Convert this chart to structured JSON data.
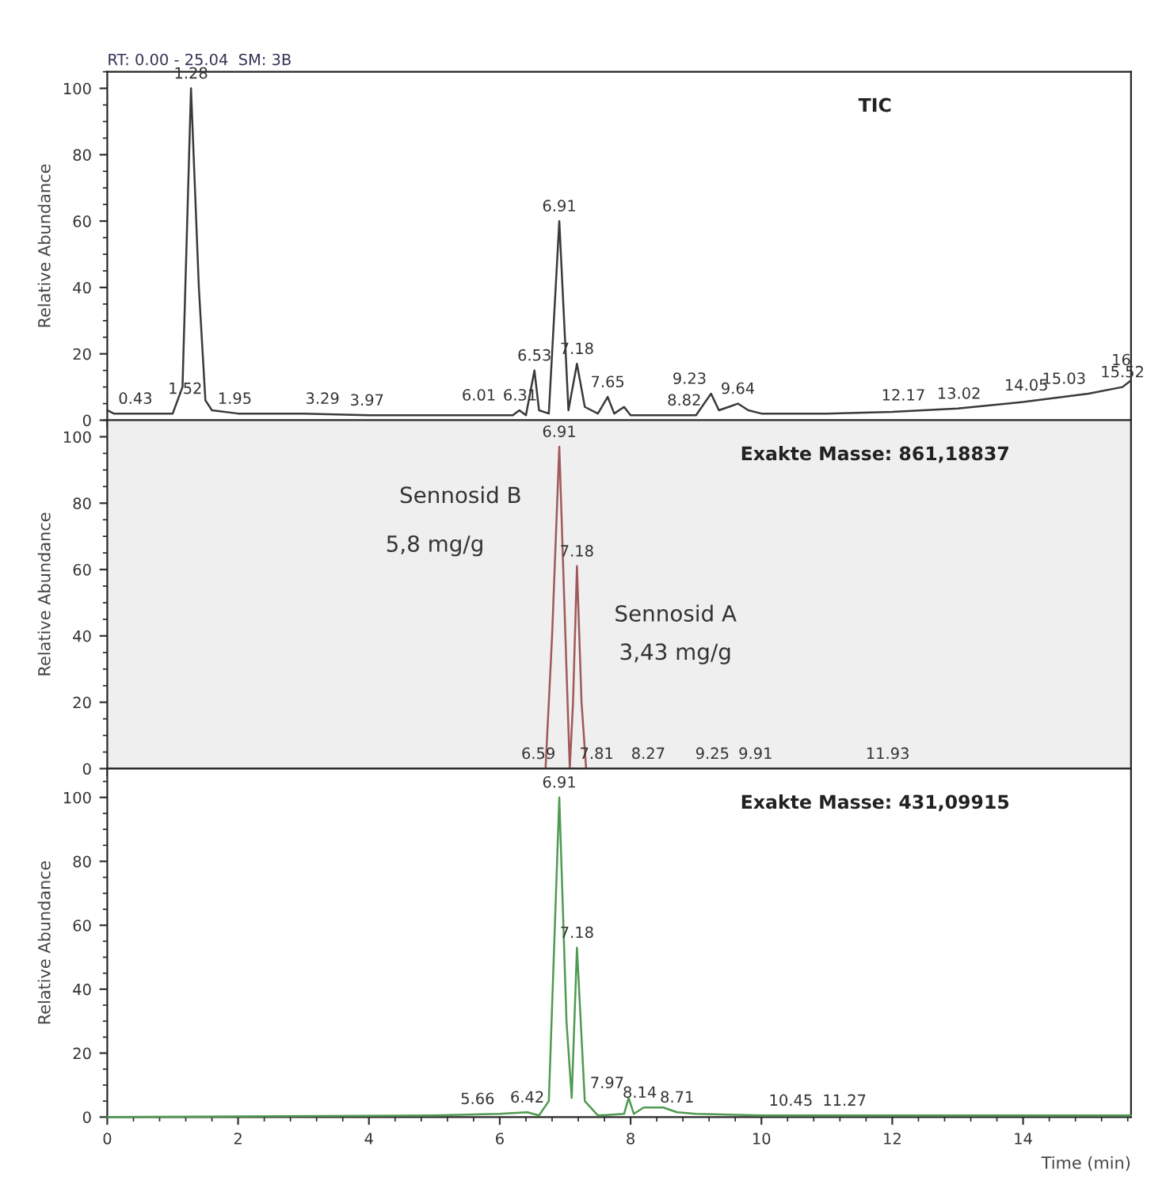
{
  "chart_data": [
    {
      "type": "line",
      "title": "TIC",
      "ylabel": "Relative Abundance",
      "x": [
        0,
        0.1,
        0.43,
        1.0,
        1.15,
        1.28,
        1.4,
        1.5,
        1.6,
        2,
        3,
        4,
        5,
        6,
        6.2,
        6.3,
        6.4,
        6.53,
        6.6,
        6.75,
        6.91,
        7.05,
        7.18,
        7.3,
        7.5,
        7.65,
        7.75,
        7.9,
        8.0,
        8.5,
        9.0,
        9.23,
        9.35,
        9.5,
        9.64,
        9.8,
        10,
        11,
        12,
        13,
        14,
        15,
        15.52,
        15.65
      ],
      "series": [
        {
          "color": "#3a3a3a",
          "values": [
            3,
            2,
            2,
            2,
            10,
            100,
            40,
            6,
            3,
            2,
            2,
            1.5,
            1.5,
            1.5,
            1.5,
            3,
            1.5,
            15,
            3,
            2,
            60,
            3,
            17,
            4,
            2,
            7,
            2,
            4,
            1.5,
            1.5,
            1.5,
            8,
            3,
            4,
            5,
            3,
            2,
            2,
            2.5,
            3.5,
            5.5,
            8,
            10,
            12
          ]
        }
      ],
      "xlim": [
        0,
        15.65
      ],
      "xticks": [
        0,
        2,
        4,
        6,
        8,
        10,
        12,
        14
      ],
      "ylim": [
        0,
        105
      ],
      "yticks": [
        0,
        20,
        40,
        60,
        80,
        100
      ],
      "tick_labels": "y",
      "subtitle": "RT: 0.00 - 25.04  SM: 3B",
      "annotations": [
        "16",
        {
          "text": "0.43",
          "x": 0.43,
          "y": 2
        },
        {
          "text": "1.28",
          "x": 1.28,
          "y": 100
        },
        {
          "text": "1.52",
          "x": 1.52,
          "y": 5
        },
        {
          "text": "1.95",
          "x": 1.95,
          "y": 2
        },
        {
          "text": "3.29",
          "x": 3.29,
          "y": 2
        },
        {
          "text": "3.97",
          "x": 3.97,
          "y": 1.5
        },
        {
          "text": "6.01",
          "x": 6.01,
          "y": 3
        },
        {
          "text": "6.31",
          "x": 6.31,
          "y": 3
        },
        {
          "text": "6.53",
          "x": 6.53,
          "y": 15
        },
        {
          "text": "6.91",
          "x": 6.91,
          "y": 60
        },
        {
          "text": "7.18",
          "x": 7.18,
          "y": 17
        },
        {
          "text": "7.65",
          "x": 7.65,
          "y": 7
        },
        {
          "text": "8.82",
          "x": 8.82,
          "y": 1.5
        },
        {
          "text": "9.23",
          "x": 9.23,
          "y": 8
        },
        {
          "text": "9.64",
          "x": 9.64,
          "y": 5
        },
        {
          "text": "12.17",
          "x": 12.17,
          "y": 3
        },
        {
          "text": "13.02",
          "x": 13.02,
          "y": 3.5
        },
        {
          "text": "14.05",
          "x": 14.05,
          "y": 6
        },
        {
          "text": "15.03",
          "x": 15.03,
          "y": 8
        },
        {
          "text": "15.52",
          "x": 15.52,
          "y": 10
        }
      ]
    },
    {
      "type": "line",
      "title": "Exakte Masse: 861,18837",
      "ylabel": "Relative Abundance",
      "x": [
        6.7,
        6.8,
        6.91,
        7.02,
        7.07,
        7.12,
        7.18,
        7.25,
        7.32,
        15.65
      ],
      "series": [
        {
          "color": "#a0585a",
          "values": [
            0,
            40,
            97,
            30,
            0,
            20,
            61,
            20,
            0,
            0
          ]
        }
      ],
      "xlim": [
        0,
        15.65
      ],
      "xticks": [
        0,
        2,
        4,
        6,
        8,
        10,
        12,
        14
      ],
      "ylim": [
        0,
        105
      ],
      "yticks": [
        0,
        20,
        40,
        60,
        80,
        100
      ],
      "tick_labels": "y",
      "bands": [
        {
          "axis": "x",
          "from": 0,
          "to": 15.65,
          "color": "#efefef"
        }
      ],
      "annotations": [
        {
          "text": "6.91",
          "x": 6.91,
          "y": 97
        },
        {
          "text": "7.18",
          "x": 7.18,
          "y": 61
        },
        {
          "text": "6.59",
          "x": 6.59,
          "y": 0
        },
        {
          "text": "7.81",
          "x": 7.81,
          "y": 0
        },
        {
          "text": "8.27",
          "x": 8.27,
          "y": 0
        },
        {
          "text": "9.25",
          "x": 9.25,
          "y": 0
        },
        {
          "text": "9.91",
          "x": 9.91,
          "y": 0
        },
        {
          "text": "11.93",
          "x": 11.93,
          "y": 0
        },
        "Sennosid B",
        "5,8 mg/g",
        "Sennosid A",
        "3,43 mg/g"
      ]
    },
    {
      "type": "line",
      "title": "Exakte Masse: 431,09915",
      "ylabel": "Relative Abundance",
      "xlabel": "Time (min)",
      "x": [
        0,
        5,
        6,
        6.42,
        6.6,
        6.75,
        6.91,
        7.02,
        7.1,
        7.18,
        7.3,
        7.5,
        7.9,
        7.97,
        8.05,
        8.2,
        8.5,
        8.71,
        9,
        10,
        15.65
      ],
      "series": [
        {
          "color": "#4f9a52",
          "values": [
            0,
            0.5,
            1,
            1.5,
            0.5,
            5,
            100,
            30,
            6,
            53,
            5,
            0.5,
            1,
            6,
            1,
            3,
            3,
            1.5,
            1,
            0.5,
            0.5
          ]
        }
      ],
      "xlim": [
        0,
        15.65
      ],
      "xticks": [
        0,
        2,
        4,
        6,
        8,
        10,
        12,
        14
      ],
      "ylim": [
        0,
        109
      ],
      "yticks": [
        0,
        20,
        40,
        60,
        80,
        100
      ],
      "annotations": [
        {
          "text": "6.91",
          "x": 6.91,
          "y": 100
        },
        {
          "text": "7.18",
          "x": 7.18,
          "y": 53
        },
        {
          "text": "5.66",
          "x": 5.66,
          "y": 1
        },
        {
          "text": "6.42",
          "x": 6.42,
          "y": 1.5
        },
        {
          "text": "7.97",
          "x": 7.97,
          "y": 6
        },
        {
          "text": "8.14",
          "x": 8.14,
          "y": 3
        },
        {
          "text": "8.71",
          "x": 8.71,
          "y": 1.5
        },
        {
          "text": "10.45",
          "x": 10.45,
          "y": 0.5
        },
        {
          "text": "11.27",
          "x": 11.27,
          "y": 0.5
        }
      ]
    }
  ]
}
